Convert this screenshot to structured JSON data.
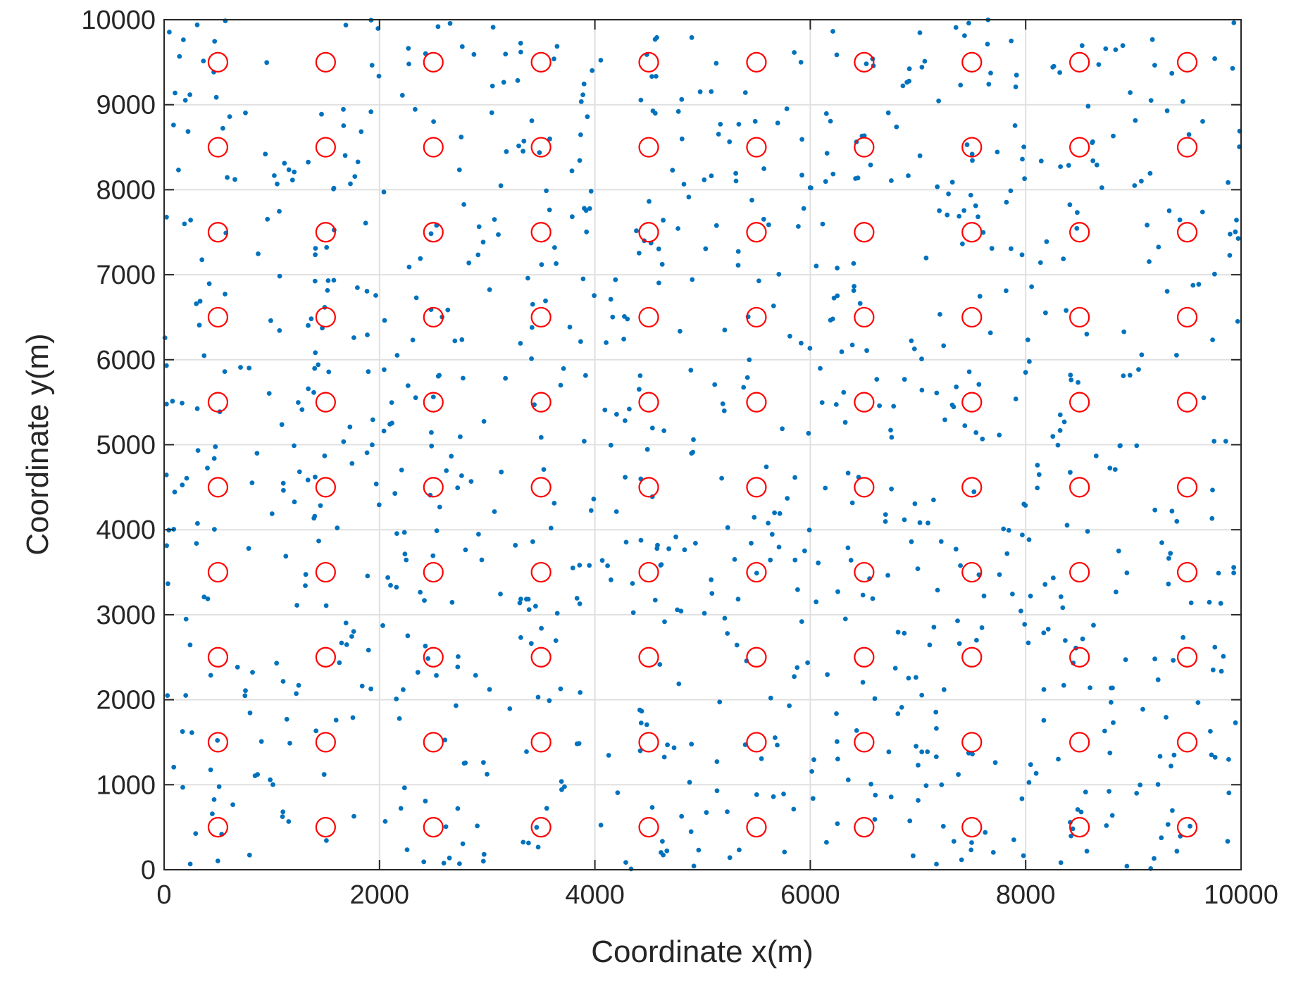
{
  "chart_data": {
    "type": "scatter",
    "xlabel": "Coordinate x(m)",
    "ylabel": "Coordinate y(m)",
    "xlim": [
      0,
      10000
    ],
    "ylim": [
      0,
      10000
    ],
    "xticks": [
      0,
      2000,
      4000,
      6000,
      8000,
      10000
    ],
    "yticks": [
      0,
      1000,
      2000,
      3000,
      4000,
      5000,
      6000,
      7000,
      8000,
      9000,
      10000
    ],
    "grid": true,
    "colors": {
      "nodes": "#0072BD",
      "centers": "#FF0000",
      "grid": "#E0E0E0",
      "axis": "#262626"
    },
    "grid_centers": {
      "marker": "circle-open",
      "x": [
        500,
        1500,
        2500,
        3500,
        4500,
        5500,
        6500,
        7500,
        8500,
        9500
      ],
      "y": [
        500,
        1500,
        2500,
        3500,
        4500,
        5500,
        6500,
        7500,
        8500,
        9500
      ]
    },
    "random_nodes": {
      "marker": "dot",
      "count": 1000,
      "distribution": "uniform random over [0,10000] x [0,10000]",
      "seed": 20231
    }
  }
}
